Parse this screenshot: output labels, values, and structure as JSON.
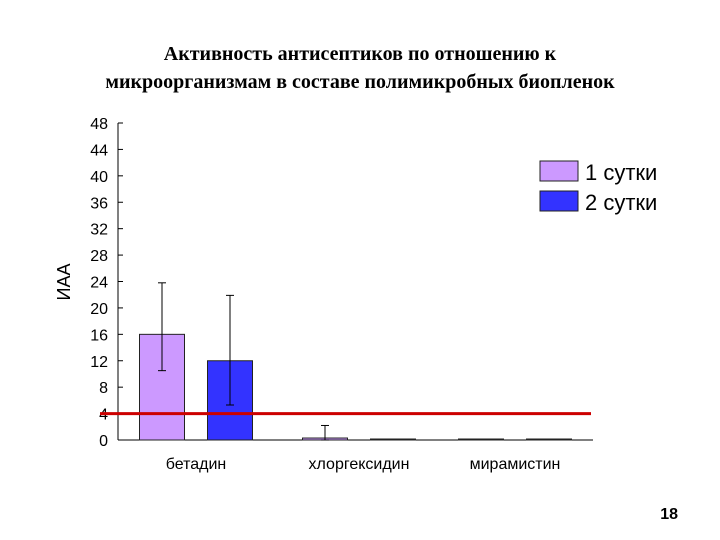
{
  "slide": {
    "title_line1": "Активность антисептиков по отношению к",
    "title_line2": "микроорганизмам в составе полимикробных биопленок",
    "page_number": "18"
  },
  "chart_data": {
    "type": "bar",
    "title": "Активность антисептиков по отношению к микроорганизмам в составе полимикробных биопленок",
    "xlabel": "",
    "ylabel": "ИАА",
    "ylim": [
      0,
      48
    ],
    "yticks": [
      0,
      4,
      8,
      12,
      16,
      20,
      24,
      28,
      32,
      36,
      40,
      44,
      48
    ],
    "categories": [
      "бетадин",
      "хлоргексидин",
      "мирамистин"
    ],
    "series": [
      {
        "name": "1 сутки",
        "color": "#cc99ff",
        "values": [
          16,
          0.3,
          0.1
        ],
        "error_low": [
          10.5,
          0,
          0
        ],
        "error_high": [
          23.8,
          2.2,
          0.1
        ]
      },
      {
        "name": "2 сутки",
        "color": "#3333ff",
        "values": [
          12,
          0.1,
          0.1
        ],
        "error_low": [
          5.3,
          0.1,
          0.1
        ],
        "error_high": [
          21.9,
          0.1,
          0.1
        ]
      }
    ],
    "reference_line": {
      "value": 4,
      "color": "#cc0000"
    },
    "legend_position": "top-right",
    "grid": false
  }
}
